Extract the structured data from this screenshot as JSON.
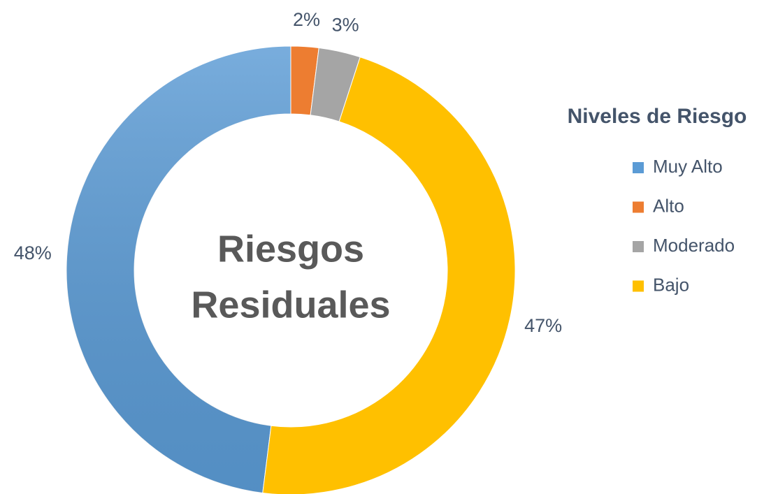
{
  "chart_data": {
    "type": "donut",
    "center_label": [
      "Riesgos",
      "Residuales"
    ],
    "legend_title": "Niveles de Riesgo",
    "legend": "right",
    "categories": [
      "Muy Alto",
      "Alto",
      "Moderado",
      "Bajo"
    ],
    "values": [
      48,
      2,
      3,
      47
    ],
    "value_labels": [
      "48%",
      "2%",
      "3%",
      "47%"
    ],
    "colors": [
      "#5b9bd5",
      "#ed7d31",
      "#a5a5a5",
      "#ffc000"
    ]
  }
}
